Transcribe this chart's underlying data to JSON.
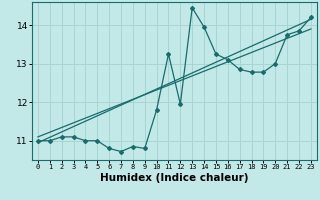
{
  "title": "",
  "xlabel": "Humidex (Indice chaleur)",
  "bg_color": "#c2e8e8",
  "line_color": "#1a6b6b",
  "grid_color": "#a8d4d4",
  "x_data": [
    0,
    1,
    2,
    3,
    4,
    5,
    6,
    7,
    8,
    9,
    10,
    11,
    12,
    13,
    14,
    15,
    16,
    17,
    18,
    19,
    20,
    21,
    22,
    23
  ],
  "y_data": [
    11.0,
    11.0,
    11.1,
    11.1,
    11.0,
    11.0,
    10.8,
    10.72,
    10.85,
    10.8,
    11.8,
    13.25,
    11.95,
    14.45,
    13.95,
    13.25,
    13.1,
    12.85,
    12.78,
    12.78,
    13.0,
    13.75,
    13.85,
    14.2
  ],
  "trend1_x": [
    0,
    23
  ],
  "trend1_y": [
    10.95,
    14.15
  ],
  "trend2_x": [
    0,
    23
  ],
  "trend2_y": [
    11.1,
    13.9
  ],
  "xlim": [
    -0.5,
    23.5
  ],
  "ylim": [
    10.5,
    14.6
  ],
  "xticks": [
    0,
    1,
    2,
    3,
    4,
    5,
    6,
    7,
    8,
    9,
    10,
    11,
    12,
    13,
    14,
    15,
    16,
    17,
    18,
    19,
    20,
    21,
    22,
    23
  ],
  "yticks": [
    11,
    12,
    13,
    14
  ]
}
